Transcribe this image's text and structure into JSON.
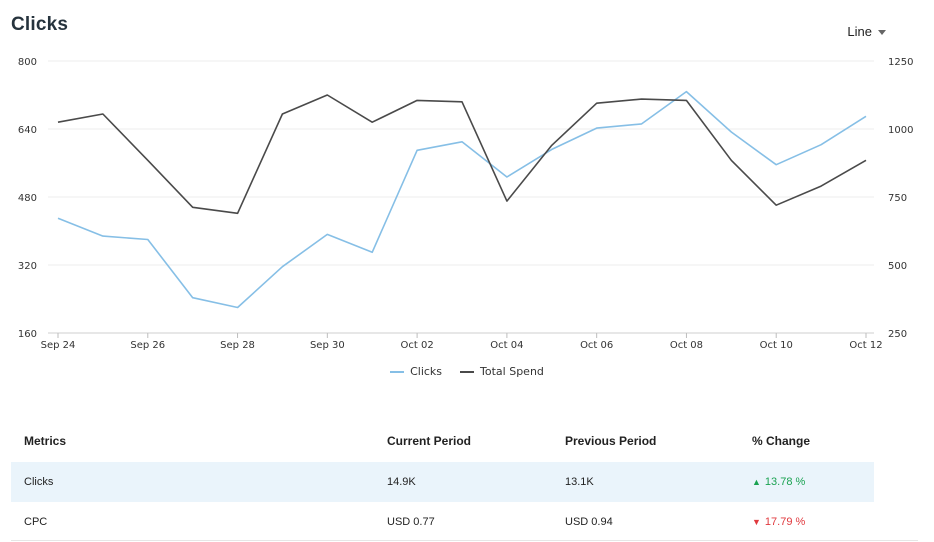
{
  "header": {
    "title": "Clicks",
    "chart_type_label": "Line"
  },
  "colors": {
    "clicks": "#86bfe6",
    "total_spend": "#4a4a4a",
    "up": "#1aa251",
    "down": "#e0393e",
    "highlight_row": "#eaf4fb"
  },
  "chart_data": {
    "type": "line",
    "x": [
      "Sep 24",
      "Sep 25",
      "Sep 26",
      "Sep 27",
      "Sep 28",
      "Sep 29",
      "Sep 30",
      "Oct 01",
      "Oct 02",
      "Oct 03",
      "Oct 04",
      "Oct 05",
      "Oct 06",
      "Oct 07",
      "Oct 08",
      "Oct 09",
      "Oct 10",
      "Oct 11",
      "Oct 12"
    ],
    "x_tick_labels": [
      "Sep 24",
      "Sep 26",
      "Sep 28",
      "Sep 30",
      "Oct 02",
      "Oct 04",
      "Oct 06",
      "Oct 08",
      "Oct 10",
      "Oct 12"
    ],
    "left_axis": {
      "ticks": [
        160,
        320,
        480,
        640,
        800
      ],
      "ylim": [
        160,
        800
      ]
    },
    "right_axis": {
      "ticks": [
        250,
        500,
        750,
        1000,
        1250
      ],
      "ylim": [
        250,
        1250
      ]
    },
    "series": [
      {
        "name": "Clicks",
        "axis": "left",
        "values": [
          430,
          388,
          380,
          243,
          220,
          316,
          392,
          350,
          590,
          610,
          527,
          592,
          642,
          652,
          728,
          633,
          556,
          603,
          670
        ]
      },
      {
        "name": "Total Spend",
        "axis": "right",
        "values": [
          1025,
          1055,
          885,
          712,
          690,
          1055,
          1125,
          1025,
          1105,
          1100,
          735,
          940,
          1095,
          1110,
          1105,
          885,
          720,
          790,
          885
        ]
      }
    ],
    "legend": [
      "Clicks",
      "Total Spend"
    ],
    "legend_position": "bottom-center",
    "grid": true
  },
  "metrics": {
    "headers": [
      "Metrics",
      "Current Period",
      "Previous Period",
      "% Change"
    ],
    "rows": [
      {
        "metric": "Clicks",
        "current": "14.9K",
        "previous": "13.1K",
        "change": "13.78 %",
        "direction": "up",
        "icon": "▲"
      },
      {
        "metric": "CPC",
        "current": "USD 0.77",
        "previous": "USD 0.94",
        "change": "17.79 %",
        "direction": "down",
        "icon": "▼"
      }
    ]
  }
}
